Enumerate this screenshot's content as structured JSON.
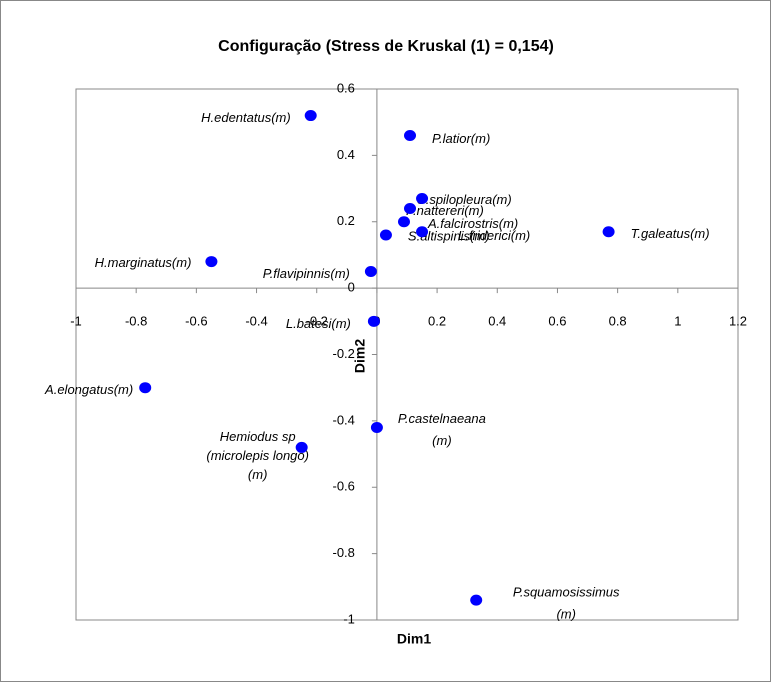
{
  "chart_data": {
    "type": "scatter",
    "title": "Configuração (Stress de Kruskal (1) = 0,154)",
    "xlabel": "Dim1",
    "ylabel": "Dim2",
    "xlim": [
      -1,
      1.2
    ],
    "xticks": [
      -1,
      -0.8,
      -0.6,
      -0.4,
      -0.2,
      0,
      0.2,
      0.4,
      0.6,
      0.8,
      1,
      1.2
    ],
    "ylim": [
      -1,
      0.6
    ],
    "yticks": [
      -1,
      -0.8,
      -0.6,
      -0.4,
      -0.2,
      0,
      0.2,
      0.4,
      0.6
    ],
    "color": "#0000ff",
    "points": [
      {
        "label": [
          "H.edentatus(m)"
        ],
        "x": -0.22,
        "y": 0.52
      },
      {
        "label": [
          "P.latior(m)"
        ],
        "x": 0.11,
        "y": 0.46
      },
      {
        "label": [
          "S.spilopleura(m)"
        ],
        "x": 0.15,
        "y": 0.27
      },
      {
        "label": [
          "P.nattereri(m)"
        ],
        "x": 0.11,
        "y": 0.24
      },
      {
        "label": [
          "A.falcirostris(m)"
        ],
        "x": 0.09,
        "y": 0.2
      },
      {
        "label": [
          "S.altispinis(m)"
        ],
        "x": 0.03,
        "y": 0.16
      },
      {
        "label": [
          "L.friderici(m)"
        ],
        "x": 0.15,
        "y": 0.17
      },
      {
        "label": [
          "T.galeatus(m)"
        ],
        "x": 0.77,
        "y": 0.17
      },
      {
        "label": [
          "H.marginatus(m)"
        ],
        "x": -0.55,
        "y": 0.08
      },
      {
        "label": [
          "P.flavipinnis(m)"
        ],
        "x": -0.02,
        "y": 0.05
      },
      {
        "label": [
          "L.batesi(m)"
        ],
        "x": -0.01,
        "y": -0.1
      },
      {
        "label": [
          "A.elongatus(m)"
        ],
        "x": -0.77,
        "y": -0.3
      },
      {
        "label": [
          "Hemiodus sp",
          "(microlepis longo)",
          "(m)"
        ],
        "x": -0.25,
        "y": -0.48
      },
      {
        "label": [
          "P.castelnaeana",
          "(m)"
        ],
        "x": 0.0,
        "y": -0.42
      },
      {
        "label": [
          "P.squamosissimus",
          "(m)"
        ],
        "x": 0.33,
        "y": -0.94
      }
    ]
  }
}
